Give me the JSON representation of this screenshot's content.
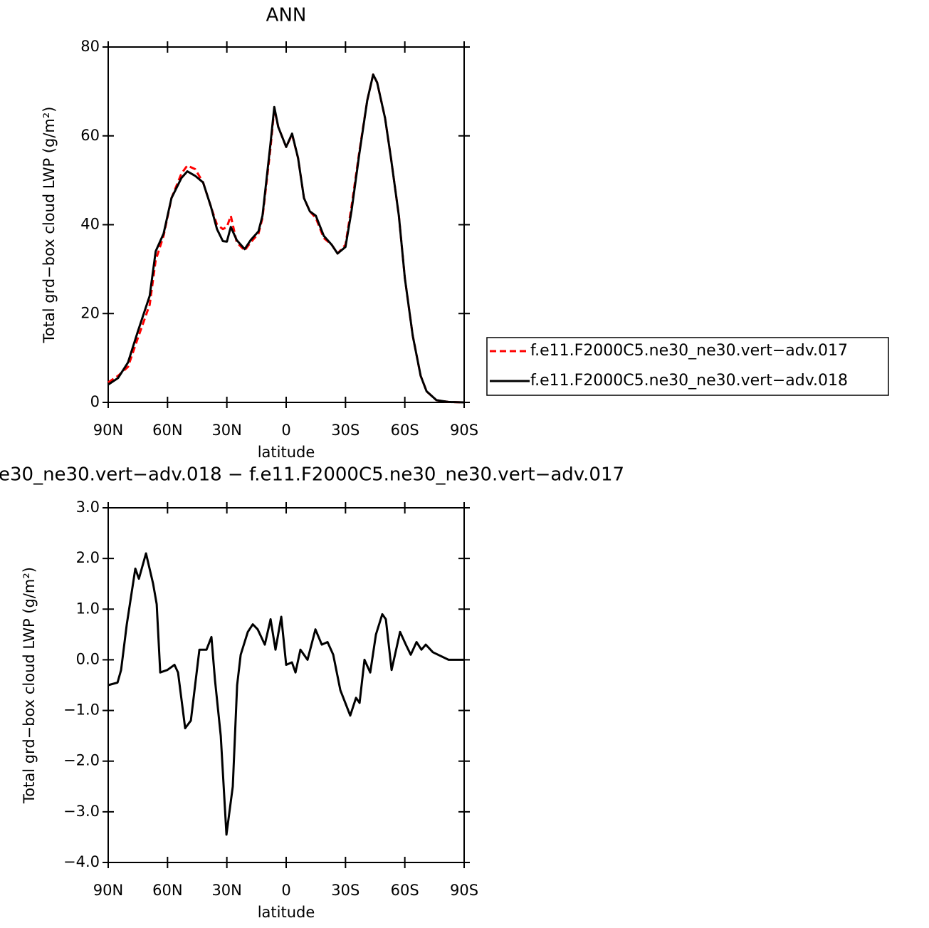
{
  "chart_data": [
    {
      "type": "line",
      "title": "ANN",
      "x_label": "latitude",
      "y_label": "Total grd−box cloud LWP (g/m²)",
      "x": [
        90,
        85,
        80,
        75,
        69,
        66,
        62,
        58,
        53,
        50,
        46,
        42,
        38,
        35,
        32,
        30,
        28,
        25,
        21,
        18,
        14,
        12,
        8,
        6,
        4,
        0,
        -3,
        -6,
        -9,
        -12,
        -15,
        -19,
        -23,
        -26,
        -30,
        -33,
        -37,
        -41,
        -44,
        -46,
        -50,
        -53,
        -57,
        -60,
        -64,
        -68,
        -71,
        -76,
        -82,
        -90
      ],
      "series": [
        {
          "name": "f.e11.F2000C5.ne30_ne30.vert−adv.017",
          "color": "#ff0000",
          "line_style": "dashed",
          "values": [
            4.5,
            6,
            8,
            14.5,
            22,
            32,
            37.5,
            46,
            51.5,
            53.3,
            52.5,
            49.5,
            44,
            40,
            39,
            39.5,
            42,
            36,
            34.2,
            36,
            38,
            41.5,
            57,
            66,
            62,
            57.5,
            60.3,
            55,
            46,
            43,
            41.5,
            37,
            35.5,
            33.5,
            35.5,
            44,
            56.5,
            68,
            73.8,
            72,
            64,
            55,
            42,
            28,
            15,
            6,
            2.5,
            0.5,
            0.1,
            0
          ]
        },
        {
          "name": "f.e11.F2000C5.ne30_ne30.vert−adv.018",
          "color": "#000000",
          "line_style": "solid",
          "values": [
            4,
            5.5,
            9,
            16,
            24,
            34,
            38,
            46,
            50.5,
            52,
            51,
            49.5,
            44,
            39,
            36.3,
            36.2,
            39.5,
            36.5,
            34.5,
            36.5,
            38.5,
            42,
            58,
            66.5,
            62,
            57.5,
            60.5,
            55,
            46,
            43,
            42,
            37.5,
            35.5,
            33.5,
            35,
            43,
            56,
            68,
            73.8,
            72,
            64,
            55,
            42,
            28,
            15,
            6,
            2.5,
            0.5,
            0.1,
            0
          ]
        }
      ],
      "xlim": [
        90,
        -90
      ],
      "xticks": [
        {
          "value": 90,
          "label": "90N"
        },
        {
          "value": 60,
          "label": "60N"
        },
        {
          "value": 30,
          "label": "30N"
        },
        0,
        {
          "value": -30,
          "label": "30S"
        },
        {
          "value": -60,
          "label": "60S"
        },
        {
          "value": -90,
          "label": "90S"
        }
      ],
      "ylim": [
        0,
        80
      ],
      "yticks": [
        0,
        20,
        40,
        60,
        80
      ],
      "grid": false,
      "legend": "right"
    },
    {
      "type": "line",
      "title": "e30_ne30.vert−adv.018 − f.e11.F2000C5.ne30_ne30.vert−adv.017",
      "x_label": "latitude",
      "y_label": "Total grd−box cloud LWP (g/m²)",
      "x": [
        90,
        85.3,
        83.5,
        80.6,
        76.3,
        74.5,
        70.9,
        67.3,
        65.5,
        63.7,
        60.1,
        56.5,
        54.7,
        51.1,
        48.2,
        43.9,
        40.3,
        37.8,
        36,
        33.1,
        30.2,
        27,
        24.8,
        23,
        19.4,
        16.9,
        14.4,
        10.8,
        7.9,
        5.4,
        2.5,
        0,
        -2.9,
        -4.7,
        -7.2,
        -10.8,
        -14.8,
        -18,
        -20.9,
        -23.8,
        -27.4,
        -32.4,
        -35.3,
        -37.1,
        -39.6,
        -42.5,
        -45.4,
        -48.6,
        -50.4,
        -53.3,
        -57.6,
        -60.5,
        -63,
        -65.9,
        -68.4,
        -70.6,
        -74.2,
        -82.1,
        -90
      ],
      "values": [
        -0.5,
        -0.45,
        -0.2,
        0.7,
        1.8,
        1.6,
        2.1,
        1.5,
        1.1,
        -0.25,
        -0.2,
        -0.1,
        -0.25,
        -1.35,
        -1.2,
        0.2,
        0.2,
        0.45,
        -0.4,
        -1.5,
        -3.45,
        -2.5,
        -0.5,
        0.1,
        0.55,
        0.7,
        0.6,
        0.3,
        0.8,
        0.2,
        0.85,
        -0.1,
        -0.05,
        -0.25,
        0.2,
        0,
        0.6,
        0.3,
        0.35,
        0.1,
        -0.6,
        -1.1,
        -0.75,
        -0.85,
        0,
        -0.25,
        0.5,
        0.9,
        0.8,
        -0.2,
        0.55,
        0.3,
        0.1,
        0.35,
        0.2,
        0.3,
        0.15,
        0,
        0
      ],
      "color": "#000000",
      "xlim": [
        90,
        -90
      ],
      "xticks": [
        {
          "value": 90,
          "label": "90N"
        },
        {
          "value": 60,
          "label": "60N"
        },
        {
          "value": 30,
          "label": "30N"
        },
        0,
        {
          "value": -30,
          "label": "30S"
        },
        {
          "value": -60,
          "label": "60S"
        },
        {
          "value": -90,
          "label": "90S"
        }
      ],
      "ylim": [
        -4,
        3
      ],
      "yticks": [
        {
          "value": -4,
          "label": "−4.0"
        },
        {
          "value": -3,
          "label": "−3.0"
        },
        {
          "value": -2,
          "label": "−2.0"
        },
        {
          "value": -1,
          "label": "−1.0"
        },
        {
          "value": 0,
          "label": "0.0"
        },
        {
          "value": 1,
          "label": "1.0"
        },
        {
          "value": 2,
          "label": "2.0"
        },
        {
          "value": 3,
          "label": "3.0"
        }
      ],
      "grid": false
    }
  ]
}
